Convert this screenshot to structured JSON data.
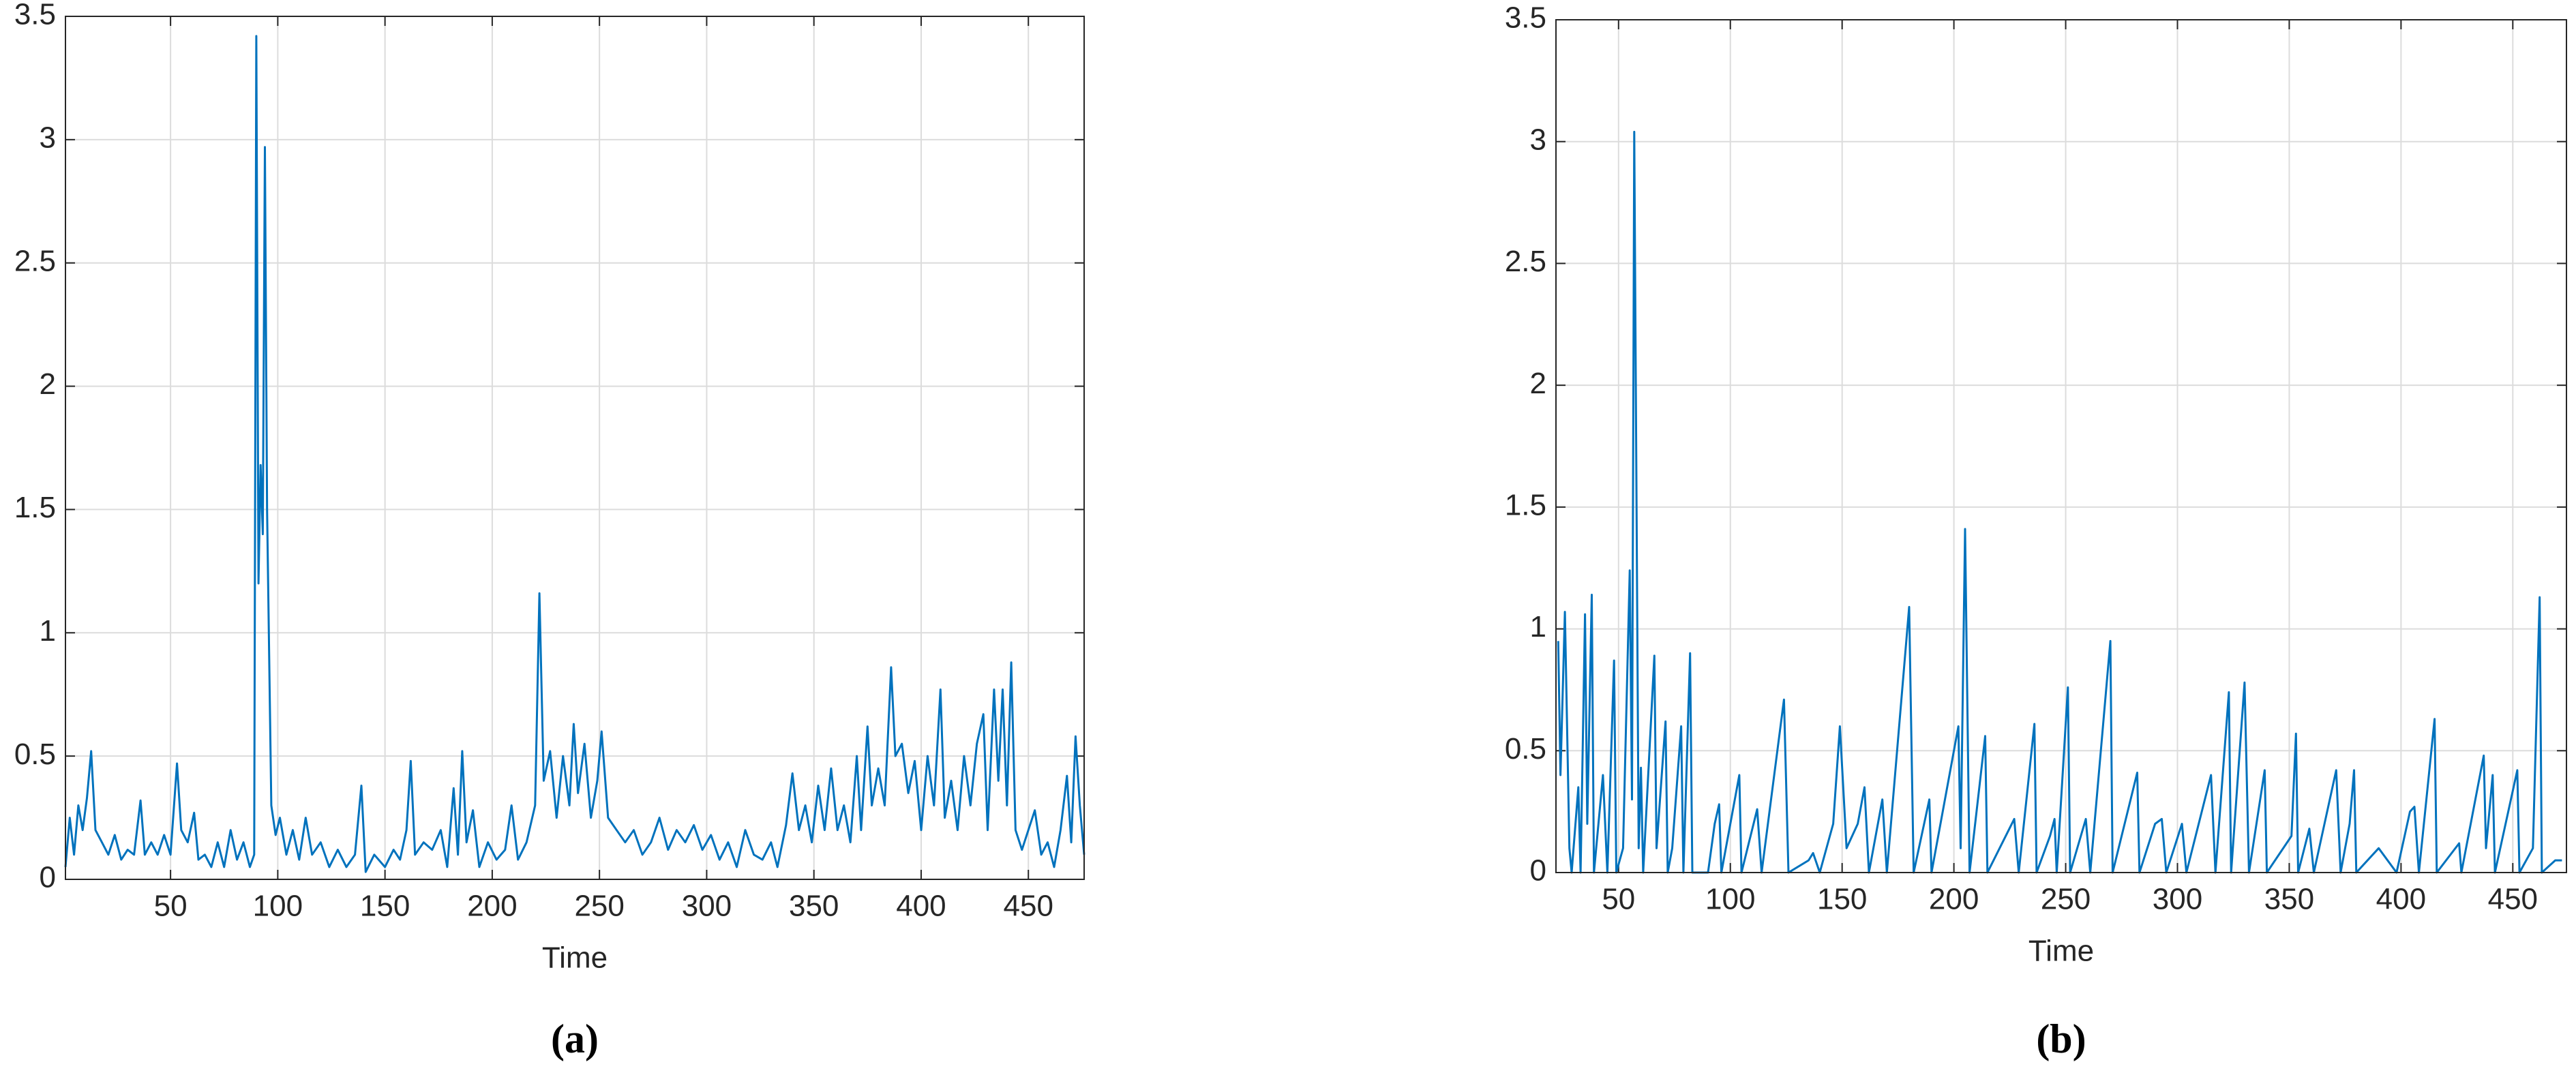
{
  "chart_data": [
    {
      "type": "line",
      "xlabel": "Time",
      "caption": "(a)",
      "color": "#0072bd",
      "grid": true,
      "xlim": [
        1,
        476
      ],
      "xticks": [
        50,
        100,
        150,
        200,
        250,
        300,
        350,
        400,
        450
      ],
      "ylim": [
        0,
        3.5
      ],
      "yticks": [
        0,
        0.5,
        1,
        1.5,
        2,
        2.5,
        3,
        3.5
      ],
      "x": [
        1,
        3,
        5,
        7,
        9,
        11,
        13,
        15,
        18,
        21,
        24,
        27,
        30,
        33,
        36,
        38,
        41,
        44,
        47,
        50,
        53,
        55,
        58,
        61,
        63,
        66,
        69,
        72,
        75,
        78,
        81,
        84,
        87,
        89,
        90,
        91,
        92,
        93,
        94,
        95,
        97,
        99,
        101,
        104,
        107,
        110,
        113,
        116,
        120,
        124,
        128,
        132,
        136,
        139,
        141,
        145,
        150,
        154,
        157,
        160,
        162,
        164,
        168,
        172,
        176,
        179,
        182,
        184,
        186,
        188,
        191,
        194,
        198,
        202,
        206,
        209,
        212,
        216,
        220,
        222,
        224,
        227,
        230,
        233,
        236,
        238,
        240,
        243,
        246,
        249,
        251,
        254,
        258,
        262,
        266,
        270,
        274,
        278,
        282,
        286,
        290,
        294,
        298,
        302,
        306,
        310,
        314,
        318,
        322,
        326,
        330,
        333,
        337,
        340,
        343,
        346,
        349,
        352,
        355,
        358,
        361,
        364,
        367,
        370,
        372,
        375,
        377,
        380,
        383,
        386,
        388,
        391,
        394,
        397,
        400,
        403,
        406,
        409,
        411,
        414,
        417,
        420,
        423,
        426,
        429,
        431,
        434,
        436,
        438,
        440,
        442,
        444,
        447,
        450,
        453,
        456,
        459,
        462,
        465,
        468,
        470,
        472,
        474,
        476
      ],
      "values": [
        0.05,
        0.25,
        0.1,
        0.3,
        0.2,
        0.33,
        0.52,
        0.2,
        0.15,
        0.1,
        0.18,
        0.08,
        0.12,
        0.1,
        0.32,
        0.1,
        0.15,
        0.1,
        0.18,
        0.1,
        0.47,
        0.2,
        0.15,
        0.27,
        0.08,
        0.1,
        0.05,
        0.15,
        0.05,
        0.2,
        0.08,
        0.15,
        0.05,
        0.1,
        3.42,
        1.2,
        1.68,
        1.4,
        2.97,
        1.5,
        0.3,
        0.18,
        0.25,
        0.1,
        0.2,
        0.08,
        0.25,
        0.1,
        0.15,
        0.05,
        0.12,
        0.05,
        0.1,
        0.38,
        0.03,
        0.1,
        0.05,
        0.12,
        0.08,
        0.2,
        0.48,
        0.1,
        0.15,
        0.12,
        0.2,
        0.05,
        0.37,
        0.1,
        0.52,
        0.15,
        0.28,
        0.05,
        0.15,
        0.08,
        0.12,
        0.3,
        0.08,
        0.15,
        0.3,
        1.16,
        0.4,
        0.52,
        0.25,
        0.5,
        0.3,
        0.63,
        0.35,
        0.55,
        0.25,
        0.4,
        0.6,
        0.25,
        0.2,
        0.15,
        0.2,
        0.1,
        0.15,
        0.25,
        0.12,
        0.2,
        0.15,
        0.22,
        0.12,
        0.18,
        0.08,
        0.15,
        0.05,
        0.2,
        0.1,
        0.08,
        0.15,
        0.05,
        0.22,
        0.43,
        0.2,
        0.3,
        0.15,
        0.38,
        0.2,
        0.45,
        0.2,
        0.3,
        0.15,
        0.5,
        0.2,
        0.62,
        0.3,
        0.45,
        0.3,
        0.86,
        0.5,
        0.55,
        0.35,
        0.48,
        0.2,
        0.5,
        0.3,
        0.77,
        0.25,
        0.4,
        0.2,
        0.5,
        0.3,
        0.55,
        0.67,
        0.2,
        0.77,
        0.4,
        0.77,
        0.3,
        0.88,
        0.2,
        0.12,
        0.2,
        0.28,
        0.1,
        0.15,
        0.05,
        0.2,
        0.42,
        0.15,
        0.58,
        0.3,
        0.1
      ]
    },
    {
      "type": "line",
      "xlabel": "Time",
      "caption": "(b)",
      "color": "#0072bd",
      "grid": true,
      "xlim": [
        22,
        474
      ],
      "xticks": [
        50,
        100,
        150,
        200,
        250,
        300,
        350,
        400,
        450
      ],
      "ylim": [
        0,
        3.5
      ],
      "yticks": [
        0,
        0.5,
        1,
        1.5,
        2,
        2.5,
        3,
        3.5
      ],
      "x": [
        23,
        24,
        26,
        28,
        29,
        32,
        33,
        35,
        36,
        38,
        39,
        43,
        45,
        48,
        49,
        52,
        55,
        56,
        57,
        59,
        60,
        61,
        66,
        67,
        71,
        72,
        74,
        78,
        79,
        82,
        83,
        90,
        93,
        95,
        96,
        104,
        105,
        112,
        114,
        124,
        126,
        135,
        137,
        140,
        146,
        149,
        152,
        157,
        160,
        162,
        168,
        170,
        180,
        182,
        189,
        190,
        202,
        203,
        205,
        207,
        214,
        215,
        227,
        229,
        236,
        237,
        243,
        245,
        246,
        251,
        252,
        259,
        261,
        270,
        271,
        282,
        283,
        290,
        293,
        295,
        302,
        304,
        315,
        317,
        323,
        324,
        330,
        332,
        339,
        340,
        351,
        353,
        354,
        359,
        361,
        371,
        373,
        377,
        379,
        380,
        390,
        398,
        404,
        406,
        408,
        415,
        416,
        426,
        427,
        437,
        438,
        441,
        442,
        452,
        453,
        459,
        462,
        463,
        469,
        472
      ],
      "values": [
        0.95,
        0.4,
        1.07,
        0.1,
        0,
        0.35,
        0,
        1.06,
        0.2,
        1.14,
        0,
        0.4,
        0,
        0.87,
        0,
        0.1,
        1.24,
        0.3,
        3.04,
        0.1,
        0.43,
        0,
        0.89,
        0.1,
        0.62,
        0,
        0.1,
        0.6,
        0,
        0.9,
        0,
        0,
        0.2,
        0.28,
        0,
        0.4,
        0,
        0.26,
        0,
        0.71,
        0,
        0.05,
        0.08,
        0,
        0.2,
        0.6,
        0.1,
        0.2,
        0.35,
        0,
        0.3,
        0,
        1.09,
        0,
        0.3,
        0,
        0.6,
        0.1,
        1.41,
        0,
        0.56,
        0,
        0.22,
        0,
        0.61,
        0,
        0.15,
        0.22,
        0,
        0.76,
        0,
        0.22,
        0,
        0.95,
        0,
        0.41,
        0,
        0.2,
        0.22,
        0,
        0.2,
        0,
        0.4,
        0,
        0.74,
        0,
        0.78,
        0,
        0.42,
        0,
        0.15,
        0.57,
        0,
        0.18,
        0,
        0.42,
        0,
        0.2,
        0.42,
        0,
        0.1,
        0,
        0.25,
        0.27,
        0,
        0.63,
        0,
        0.12,
        0,
        0.48,
        0.1,
        0.4,
        0,
        0.42,
        0,
        0.1,
        1.13,
        0,
        0.05,
        0.05
      ]
    }
  ]
}
